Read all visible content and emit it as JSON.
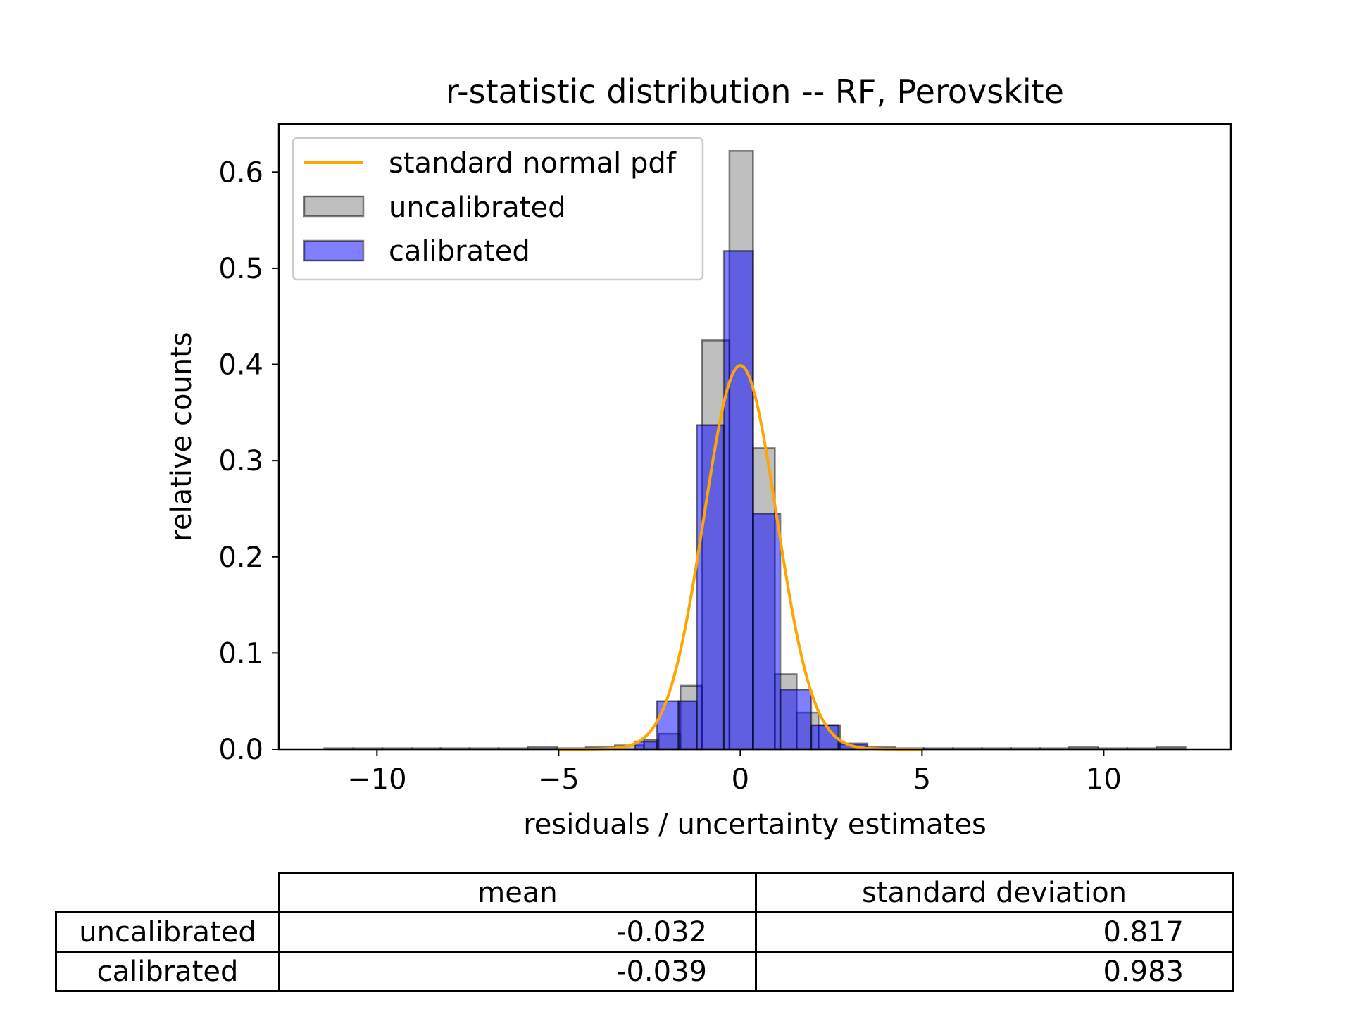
{
  "chart_data": {
    "type": "bar",
    "title": "r-statistic distribution -- RF, Perovskite",
    "xlabel": "residuals / uncertainty estimates",
    "ylabel": "relative counts",
    "xlim": [
      -12.7,
      13.5
    ],
    "ylim": [
      0,
      0.65
    ],
    "xticks": [
      -10,
      -5,
      0,
      5,
      10
    ],
    "xtick_labels": [
      "−10",
      "−5",
      "0",
      "5",
      "10"
    ],
    "yticks": [
      0.0,
      0.1,
      0.2,
      0.3,
      0.4,
      0.5,
      0.6
    ],
    "ytick_labels": [
      "0.0",
      "0.1",
      "0.2",
      "0.3",
      "0.4",
      "0.5",
      "0.6"
    ],
    "grid": false,
    "legend_position": "top-left",
    "series": [
      {
        "name": "uncalibrated",
        "kind": "histogram",
        "color": "#808080",
        "bins": [
          {
            "x0": -11.45,
            "x1": -10.65,
            "y": 0.001
          },
          {
            "x0": -10.65,
            "x1": -9.85,
            "y": 0.001
          },
          {
            "x0": -9.85,
            "x1": -9.05,
            "y": 0.001
          },
          {
            "x0": -9.05,
            "x1": -8.25,
            "y": 0.001
          },
          {
            "x0": -8.25,
            "x1": -7.45,
            "y": 0.001
          },
          {
            "x0": -7.45,
            "x1": -6.65,
            "y": 0.001
          },
          {
            "x0": -6.65,
            "x1": -5.85,
            "y": 0.001
          },
          {
            "x0": -5.85,
            "x1": -5.05,
            "y": 0.002
          },
          {
            "x0": -5.05,
            "x1": -4.25,
            "y": 0.001
          },
          {
            "x0": -4.25,
            "x1": -3.45,
            "y": 0.002
          },
          {
            "x0": -3.45,
            "x1": -2.65,
            "y": 0.004
          },
          {
            "x0": -2.65,
            "x1": -2.25,
            "y": 0.01
          },
          {
            "x0": -2.25,
            "x1": -1.65,
            "y": 0.016
          },
          {
            "x0": -1.65,
            "x1": -1.05,
            "y": 0.066
          },
          {
            "x0": -1.05,
            "x1": -0.3,
            "y": 0.425
          },
          {
            "x0": -0.3,
            "x1": 0.35,
            "y": 0.622
          },
          {
            "x0": 0.35,
            "x1": 0.95,
            "y": 0.313
          },
          {
            "x0": 0.95,
            "x1": 1.55,
            "y": 0.078
          },
          {
            "x0": 1.55,
            "x1": 2.15,
            "y": 0.038
          },
          {
            "x0": 2.15,
            "x1": 2.75,
            "y": 0.025
          },
          {
            "x0": 2.75,
            "x1": 3.45,
            "y": 0.005
          },
          {
            "x0": 3.45,
            "x1": 4.25,
            "y": 0.002
          },
          {
            "x0": 4.25,
            "x1": 5.05,
            "y": 0.001
          },
          {
            "x0": 5.05,
            "x1": 5.85,
            "y": 0.001
          },
          {
            "x0": 5.85,
            "x1": 6.65,
            "y": 0.001
          },
          {
            "x0": 6.65,
            "x1": 7.45,
            "y": 0.001
          },
          {
            "x0": 7.45,
            "x1": 8.25,
            "y": 0.001
          },
          {
            "x0": 8.25,
            "x1": 9.05,
            "y": 0.001
          },
          {
            "x0": 9.05,
            "x1": 9.85,
            "y": 0.002
          },
          {
            "x0": 9.85,
            "x1": 10.65,
            "y": 0.001
          },
          {
            "x0": 10.65,
            "x1": 11.45,
            "y": 0.001
          },
          {
            "x0": 11.45,
            "x1": 12.25,
            "y": 0.002
          }
        ]
      },
      {
        "name": "calibrated",
        "kind": "histogram",
        "color": "#0000ff",
        "bins": [
          {
            "x0": -2.9,
            "x1": -2.3,
            "y": 0.008
          },
          {
            "x0": -2.3,
            "x1": -1.7,
            "y": 0.05
          },
          {
            "x0": -1.7,
            "x1": -1.2,
            "y": 0.05
          },
          {
            "x0": -1.2,
            "x1": -0.45,
            "y": 0.337
          },
          {
            "x0": -0.45,
            "x1": 0.35,
            "y": 0.518
          },
          {
            "x0": 0.35,
            "x1": 1.1,
            "y": 0.245
          },
          {
            "x0": 1.1,
            "x1": 1.95,
            "y": 0.062
          },
          {
            "x0": 1.95,
            "x1": 2.7,
            "y": 0.025
          },
          {
            "x0": 2.7,
            "x1": 3.5,
            "y": 0.006
          }
        ]
      },
      {
        "name": "standard normal pdf",
        "kind": "line",
        "color": "#ffa500",
        "function": "standard_normal_pdf",
        "x_range": [
          -5,
          5
        ]
      }
    ],
    "legend": [
      {
        "label": "standard normal pdf",
        "kind": "line",
        "color": "#ffa500"
      },
      {
        "label": "uncalibrated",
        "kind": "patch",
        "color": "#808080"
      },
      {
        "label": "calibrated",
        "kind": "patch",
        "color": "#0000ff"
      }
    ]
  },
  "table": {
    "columns": [
      "mean",
      "standard deviation"
    ],
    "rows": [
      {
        "label": "uncalibrated",
        "mean": "-0.032",
        "std": "0.817"
      },
      {
        "label": "calibrated",
        "mean": "-0.039",
        "std": "0.983"
      }
    ]
  }
}
